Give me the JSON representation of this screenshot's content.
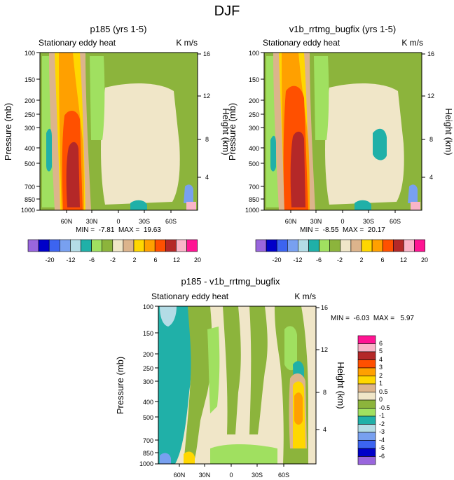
{
  "figure_title": "DJF",
  "chart_data": [
    {
      "type": "heatmap",
      "title": "p185 (yrs 1-5)",
      "subtitle_left": "Stationary eddy heat",
      "subtitle_right": "K m/s",
      "ylabel": "Pressure (mb)",
      "ylabel_right": "Height (km)",
      "y_ticks": [
        "100",
        "150",
        "200",
        "250",
        "300",
        "400",
        "500",
        "700",
        "850",
        "1000"
      ],
      "y_right_ticks": [
        "16",
        "12",
        "8",
        "4"
      ],
      "x_ticks": [
        "60N",
        "30N",
        "0",
        "30S",
        "60S"
      ],
      "stats": "MIN =  -7.81  MAX =  19.63",
      "colorbar_levels": [
        "-20",
        "-12",
        "-6",
        "-2",
        "2",
        "6",
        "12",
        "20"
      ]
    },
    {
      "type": "heatmap",
      "title": "v1b_rrtmg_bugfix (yrs 1-5)",
      "subtitle_left": "Stationary eddy heat",
      "subtitle_right": "K m/s",
      "ylabel": "Pressure (mb)",
      "ylabel_right": "Height (km)",
      "y_ticks": [
        "100",
        "150",
        "200",
        "250",
        "300",
        "400",
        "500",
        "700",
        "850",
        "1000"
      ],
      "y_right_ticks": [
        "16",
        "12",
        "8",
        "4"
      ],
      "x_ticks": [
        "60N",
        "30N",
        "0",
        "30S",
        "60S"
      ],
      "stats": "MIN =  -8.55  MAX =  20.17",
      "colorbar_levels": [
        "-20",
        "-12",
        "-6",
        "-2",
        "2",
        "6",
        "12",
        "20"
      ]
    },
    {
      "type": "heatmap",
      "title": "p185 - v1b_rrtmg_bugfix",
      "subtitle_left": "Stationary eddy heat",
      "subtitle_right": "K m/s",
      "ylabel": "Pressure (mb)",
      "ylabel_right": "Height (km)",
      "y_ticks": [
        "100",
        "150",
        "200",
        "250",
        "300",
        "400",
        "500",
        "700",
        "850",
        "1000"
      ],
      "y_right_ticks": [
        "16",
        "12",
        "8",
        "4"
      ],
      "x_ticks": [
        "60N",
        "30N",
        "0",
        "30S",
        "60S"
      ],
      "stats": "MIN =  -6.03  MAX =   5.97",
      "colorbar_levels": [
        "6",
        "5",
        "4",
        "3",
        "2",
        "1",
        "0.5",
        "0",
        "-0.5",
        "-1",
        "-2",
        "-3",
        "-4",
        "-5",
        "-6"
      ]
    }
  ],
  "palettes": {
    "main": [
      "#9966DD",
      "#0000C8",
      "#3C64F0",
      "#78A0F0",
      "#B4DCE6",
      "#20B0A8",
      "#A0E060",
      "#8CB43C",
      "#F0E6C8",
      "#DCB48C",
      "#FFD700",
      "#FFA000",
      "#FF5000",
      "#B42828",
      "#FAB4C8",
      "#FF1493"
    ],
    "diff": [
      "#FF1493",
      "#FAB4C8",
      "#B42828",
      "#FF5000",
      "#FFA000",
      "#FFD700",
      "#DCB48C",
      "#F0E6C8",
      "#8CB43C",
      "#A0E060",
      "#20B0A8",
      "#B4DCE6",
      "#78A0F0",
      "#3C64F0",
      "#0000C8",
      "#9966DD"
    ]
  }
}
